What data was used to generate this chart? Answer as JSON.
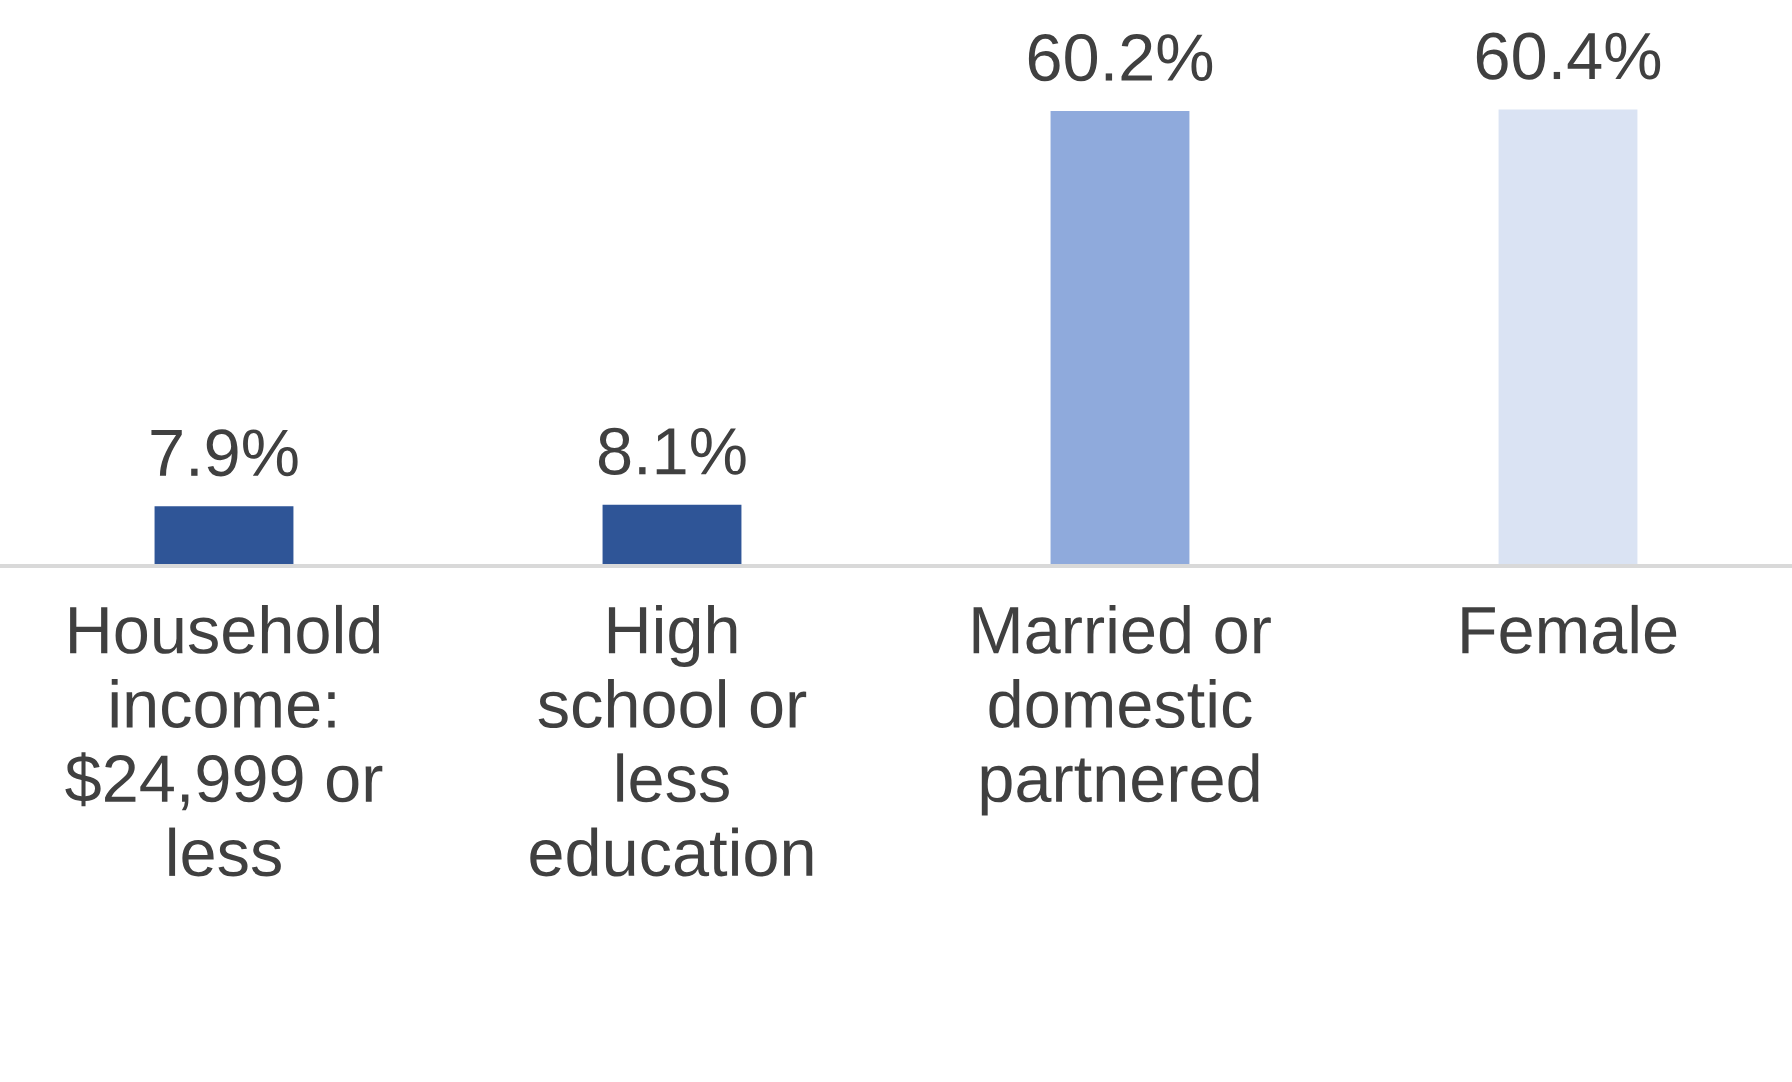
{
  "chart_data": {
    "type": "bar",
    "categories": [
      "Household income: $24,999 or less",
      "High school or less education",
      "Married or domestic partnered",
      "Female"
    ],
    "values": [
      7.9,
      8.1,
      60.2,
      60.4
    ],
    "value_labels": [
      "7.9%",
      "8.1%",
      "60.2%",
      "60.4%"
    ],
    "colors": [
      "#2f5597",
      "#2f5597",
      "#8faadc",
      "#dae3f3"
    ],
    "data_labels": true,
    "grid": false,
    "legend": false
  }
}
